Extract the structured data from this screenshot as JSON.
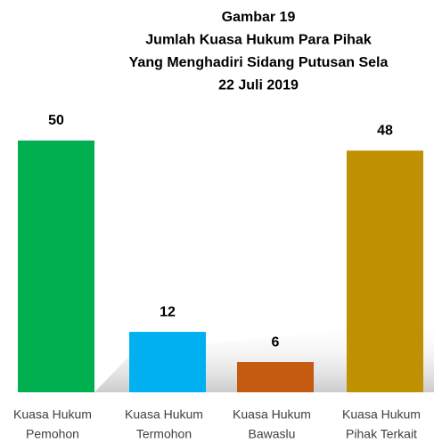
{
  "chart_data": {
    "type": "bar",
    "title": [
      "Gambar 19",
      "Jumlah Kuasa Hukum Para Pihak",
      "Yang Menghadiri Sidang Putusan Sela",
      "22 Juli 2019"
    ],
    "categories": [
      [
        "Kuasa Hukum",
        "Pemohon"
      ],
      [
        "Kuasa Hukum",
        "Termohon"
      ],
      [
        "Kuasa Hukum",
        "Bawaslu"
      ],
      [
        "Kuasa Hukum",
        "Pihak Terkait"
      ]
    ],
    "values": [
      50,
      12,
      6,
      48
    ],
    "colors": [
      "#00b050",
      "#00b0f0",
      "#c55a11",
      "#bf9000"
    ]
  }
}
